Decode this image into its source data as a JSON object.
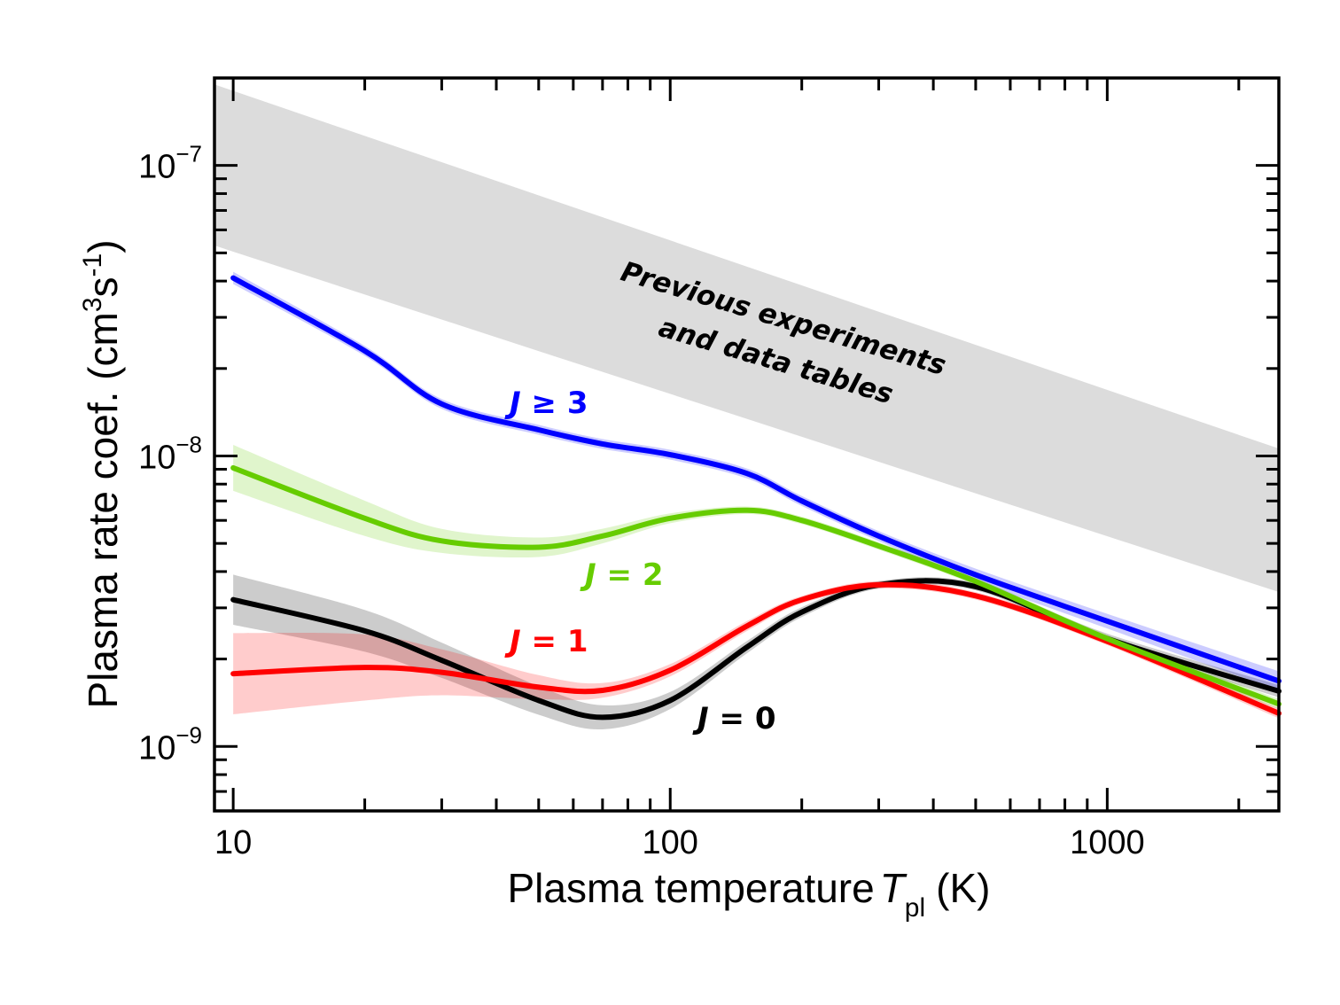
{
  "chart_data": {
    "type": "line",
    "title": "",
    "xlabel": "Plasma temperature",
    "xlabel_symbol": "T",
    "xlabel_subscript": "pl",
    "xlabel_unit": "(K)",
    "ylabel": "Plasma rate coef. (cm",
    "ylabel_sup1": "3",
    "ylabel_mid": "s",
    "ylabel_sup2": "-1",
    "ylabel_end": ")",
    "xscale": "log",
    "yscale": "log",
    "xlim": [
      9.06,
      2470
    ],
    "ylim": [
      6e-10,
      2e-07
    ],
    "grid": false,
    "x_ticks": [
      {
        "value": 10,
        "label": "10"
      },
      {
        "value": 100,
        "label": "100"
      },
      {
        "value": 1000,
        "label": "1000"
      }
    ],
    "y_ticks": [
      {
        "value": 1e-09,
        "base": "10",
        "exp": "−9"
      },
      {
        "value": 1e-08,
        "base": "10",
        "exp": "−8"
      },
      {
        "value": 1e-07,
        "base": "10",
        "exp": "−7"
      }
    ],
    "x": [
      10,
      20,
      30,
      50,
      70,
      100,
      150,
      200,
      300,
      500,
      1000,
      2470
    ],
    "series": [
      {
        "name": "J = 0",
        "label_var": "J",
        "label_rest": " = 0",
        "color": "#000000",
        "values": [
          3.2e-09,
          2.5e-09,
          1.98e-09,
          1.44e-09,
          1.26e-09,
          1.44e-09,
          2.2e-09,
          2.9e-09,
          3.6e-09,
          3.55e-09,
          2.35e-09,
          1.55e-09
        ],
        "uncertainty": [
          0.22,
          0.18,
          0.15,
          0.12,
          0.1,
          0.07,
          0.05,
          0.04,
          0.03,
          0.03,
          0.04,
          0.05
        ]
      },
      {
        "name": "J = 1",
        "label_var": "J",
        "label_rest": " = 1",
        "color": "#ff0000",
        "values": [
          1.78e-09,
          1.87e-09,
          1.8e-09,
          1.6e-09,
          1.56e-09,
          1.83e-09,
          2.6e-09,
          3.2e-09,
          3.6e-09,
          3.3e-09,
          2.3e-09,
          1.3e-09
        ],
        "uncertainty": [
          0.38,
          0.3,
          0.2,
          0.1,
          0.06,
          0.05,
          0.04,
          0.03,
          0.03,
          0.03,
          0.03,
          0.04
        ]
      },
      {
        "name": "J = 2",
        "label_var": "J",
        "label_rest": " = 2",
        "color": "#66cc00",
        "values": [
          9.1e-09,
          6.1e-09,
          5.1e-09,
          4.85e-09,
          5.3e-09,
          6.1e-09,
          6.5e-09,
          6e-09,
          4.9e-09,
          3.7e-09,
          2.35e-09,
          1.4e-09
        ],
        "uncertainty": [
          0.2,
          0.15,
          0.1,
          0.08,
          0.06,
          0.04,
          0.03,
          0.03,
          0.03,
          0.03,
          0.03,
          0.04
        ]
      },
      {
        "name": "J ≥ 3",
        "label_var": "J",
        "label_rest": " ≥ 3",
        "color": "#0000ff",
        "values": [
          4.1e-08,
          2.3e-08,
          1.51e-08,
          1.23e-08,
          1.1e-08,
          1.01e-08,
          8.7e-09,
          7e-09,
          5.3e-09,
          3.9e-09,
          2.7e-09,
          1.68e-09
        ],
        "uncertainty": [
          0.05,
          0.04,
          0.04,
          0.04,
          0.04,
          0.04,
          0.04,
          0.04,
          0.04,
          0.05,
          0.06,
          0.08
        ]
      }
    ],
    "reference_band": {
      "color": "#dcdcdc",
      "x": [
        9.06,
        2470
      ],
      "upper": [
        1.9e-07,
        1.06e-08
      ],
      "lower": [
        5.3e-08,
        3.4e-09
      ],
      "annotation_line1": "Previous experiments",
      "annotation_line2": "and data tables"
    }
  }
}
